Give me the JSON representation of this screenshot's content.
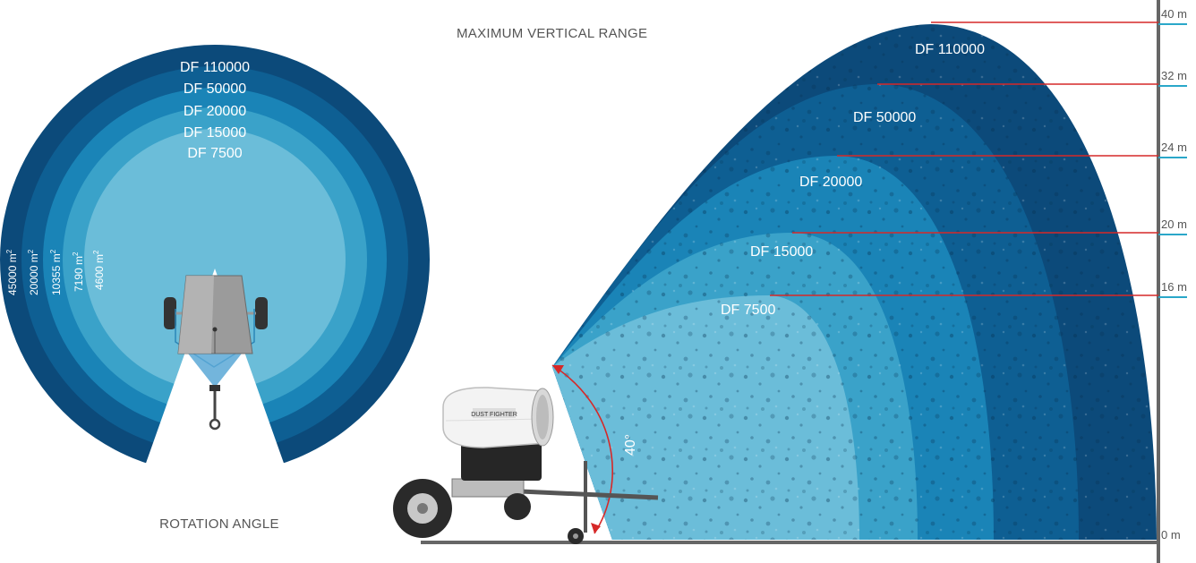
{
  "rotation_view": {
    "title": "ROTATION ANGLE",
    "rings": [
      {
        "label": "DF 110000",
        "area": "45000 m",
        "color": "#0c4a7a"
      },
      {
        "label": "DF 50000",
        "area": "20000 m",
        "color": "#0e5f93"
      },
      {
        "label": "DF 20000",
        "area": "10355 m",
        "color": "#1a84b7"
      },
      {
        "label": "DF 15000",
        "area": "7190 m",
        "color": "#3aa2c9"
      },
      {
        "label": "DF 7500",
        "area": "4600 m",
        "color": "#6bbdd9"
      }
    ],
    "area_unit_sup": "2"
  },
  "vertical_view": {
    "title": "MAXIMUM VERTICAL RANGE",
    "angle_label": "40°",
    "plumes": [
      {
        "label": "DF 110000",
        "height": 40,
        "color": "#0c4a7a"
      },
      {
        "label": "DF 50000",
        "height": 32,
        "color": "#0e5f93"
      },
      {
        "label": "DF 20000",
        "height": 24,
        "color": "#1a84b7"
      },
      {
        "label": "DF 15000",
        "height": 20,
        "color": "#3aa2c9"
      },
      {
        "label": "DF 7500",
        "height": 16,
        "color": "#6bbdd9"
      }
    ],
    "axis_ticks": [
      "40 m",
      "32 m",
      "24 m",
      "20 m",
      "16 m",
      "0 m"
    ],
    "line_color": "#d62828",
    "tick_color": "#2aa7c9",
    "machine_label": "DUST FIGHTER"
  }
}
